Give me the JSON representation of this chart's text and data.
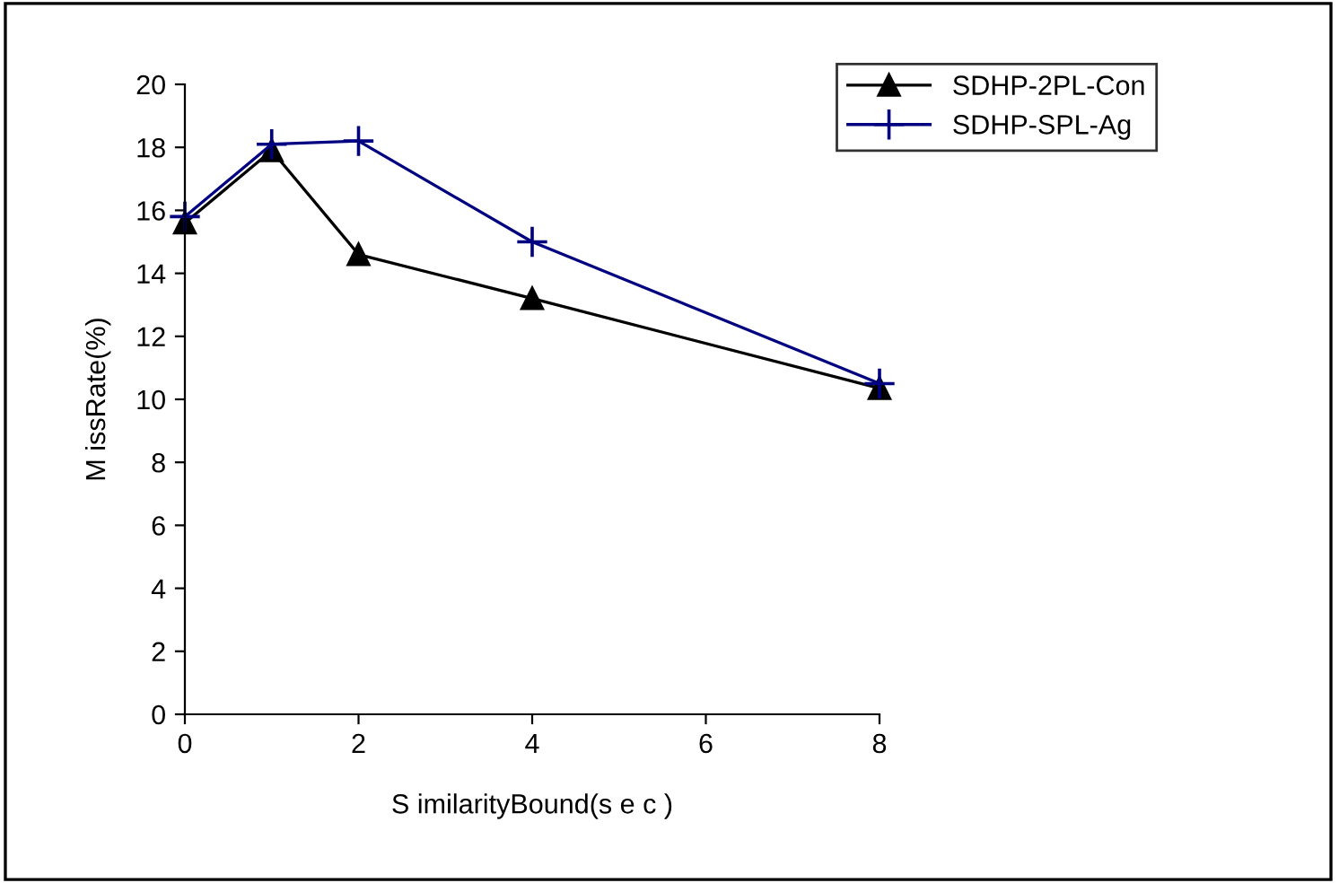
{
  "chart_data": {
    "type": "line",
    "xlabel": "S imilarityBound(s e c )",
    "ylabel": "M issRate(%)",
    "x": [
      0,
      1,
      2,
      4,
      8
    ],
    "series": [
      {
        "name": "SDHP-2PL-Con",
        "color": "#000000",
        "marker": "triangle",
        "values": [
          15.6,
          17.9,
          14.6,
          13.2,
          10.35
        ]
      },
      {
        "name": "SDHP-SPL-Ag",
        "color": "#000080",
        "marker": "cross",
        "values": [
          15.8,
          18.1,
          18.2,
          15.0,
          10.5
        ]
      }
    ],
    "xlim": [
      0,
      8
    ],
    "xticks": [
      0,
      2,
      4,
      6,
      8
    ],
    "ylim": [
      0,
      20
    ],
    "yticks": [
      0,
      2,
      4,
      6,
      8,
      10,
      12,
      14,
      16,
      18,
      20
    ],
    "grid": false,
    "legend": "top right",
    "line_style": "solid"
  }
}
